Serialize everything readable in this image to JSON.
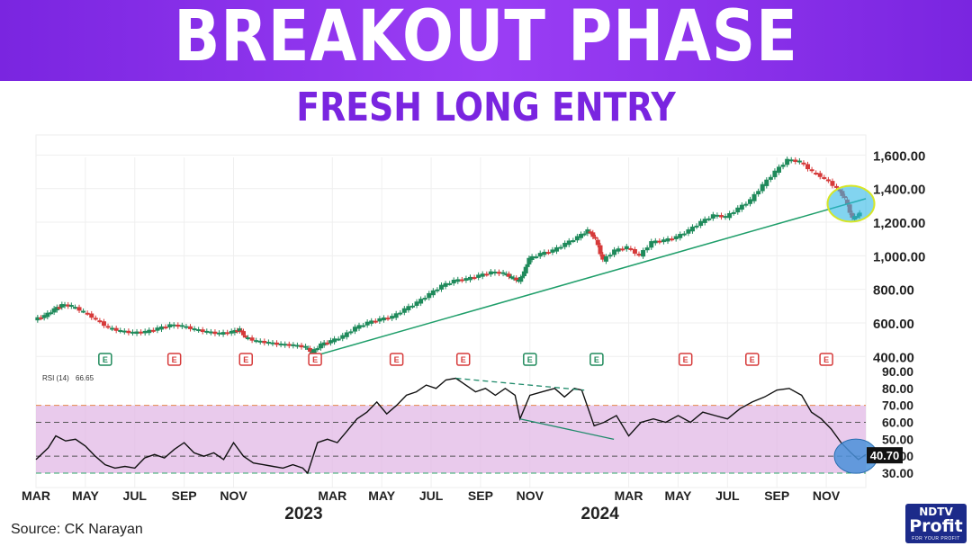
{
  "header": {
    "title": "BREAKOUT PHASE",
    "subtitle": "FRESH LONG ENTRY"
  },
  "source": "Source: CK Narayan",
  "logo": {
    "top": "NDTV",
    "middle": "Profit",
    "bottom": "FOR YOUR PROFIT"
  },
  "colors": {
    "banner": "#7a25e0",
    "subtitle": "#7a25e0",
    "candle_up": "#1f8a5b",
    "candle_down": "#d63a3a",
    "trendline": "#1f9e6a",
    "rsi_band_fill": "#e2b8e6",
    "rsi_line": "#111111",
    "highlight_ellipse": "#2fb7e6",
    "highlight_border": "#d6e626",
    "rsi_circle": "#4a90d9",
    "earnings_up": "#1f8a5b",
    "earnings_down": "#d63a3a"
  },
  "chart_data": [
    {
      "type": "candlestick",
      "title": "",
      "y_ticks": [
        "1,600.00",
        "1,400.00",
        "1,200.00",
        "1,000.00",
        "800.00",
        "600.00",
        "400.00"
      ],
      "y_tick_values": [
        1600,
        1400,
        1200,
        1000,
        800,
        600,
        400
      ],
      "ylim": [
        380,
        1720
      ],
      "x_tick_labels": [
        "MAR",
        "MAY",
        "JUL",
        "SEP",
        "NOV",
        "MAR",
        "MAY",
        "JUL",
        "SEP",
        "NOV",
        "MAR",
        "MAY",
        "JUL",
        "SEP",
        "NOV"
      ],
      "x_tick_months": [
        2,
        4,
        6,
        8,
        10,
        14,
        16,
        18,
        20,
        22,
        26,
        28,
        30,
        32,
        34
      ],
      "year_labels": [
        {
          "label": "2023",
          "month": 12
        },
        {
          "label": "2024",
          "month": 24
        }
      ],
      "xlim_months": [
        2,
        35.6
      ],
      "close_series": [
        {
          "m": 2.0,
          "v": 620
        },
        {
          "m": 2.4,
          "v": 640
        },
        {
          "m": 2.8,
          "v": 680
        },
        {
          "m": 3.1,
          "v": 705
        },
        {
          "m": 3.5,
          "v": 700
        },
        {
          "m": 4.0,
          "v": 665
        },
        {
          "m": 4.5,
          "v": 620
        },
        {
          "m": 5.0,
          "v": 570
        },
        {
          "m": 5.5,
          "v": 550
        },
        {
          "m": 6.0,
          "v": 540
        },
        {
          "m": 6.5,
          "v": 545
        },
        {
          "m": 7.0,
          "v": 565
        },
        {
          "m": 7.5,
          "v": 585
        },
        {
          "m": 8.0,
          "v": 580
        },
        {
          "m": 8.5,
          "v": 560
        },
        {
          "m": 9.0,
          "v": 545
        },
        {
          "m": 9.5,
          "v": 535
        },
        {
          "m": 10.0,
          "v": 545
        },
        {
          "m": 10.3,
          "v": 560
        },
        {
          "m": 10.5,
          "v": 515
        },
        {
          "m": 11.0,
          "v": 490
        },
        {
          "m": 11.5,
          "v": 480
        },
        {
          "m": 12.0,
          "v": 470
        },
        {
          "m": 12.5,
          "v": 465
        },
        {
          "m": 13.0,
          "v": 455
        },
        {
          "m": 13.2,
          "v": 420
        },
        {
          "m": 13.6,
          "v": 470
        },
        {
          "m": 14.0,
          "v": 490
        },
        {
          "m": 14.5,
          "v": 520
        },
        {
          "m": 15.0,
          "v": 570
        },
        {
          "m": 15.5,
          "v": 600
        },
        {
          "m": 16.0,
          "v": 620
        },
        {
          "m": 16.5,
          "v": 635
        },
        {
          "m": 17.0,
          "v": 680
        },
        {
          "m": 17.5,
          "v": 720
        },
        {
          "m": 18.0,
          "v": 770
        },
        {
          "m": 18.5,
          "v": 820
        },
        {
          "m": 19.0,
          "v": 850
        },
        {
          "m": 19.5,
          "v": 860
        },
        {
          "m": 20.0,
          "v": 880
        },
        {
          "m": 20.5,
          "v": 900
        },
        {
          "m": 21.0,
          "v": 895
        },
        {
          "m": 21.3,
          "v": 870
        },
        {
          "m": 21.6,
          "v": 850
        },
        {
          "m": 21.8,
          "v": 900
        },
        {
          "m": 22.0,
          "v": 980
        },
        {
          "m": 22.5,
          "v": 1010
        },
        {
          "m": 23.0,
          "v": 1030
        },
        {
          "m": 23.5,
          "v": 1070
        },
        {
          "m": 24.0,
          "v": 1110
        },
        {
          "m": 24.4,
          "v": 1150
        },
        {
          "m": 24.7,
          "v": 1100
        },
        {
          "m": 25.0,
          "v": 970
        },
        {
          "m": 25.5,
          "v": 1030
        },
        {
          "m": 26.0,
          "v": 1050
        },
        {
          "m": 26.5,
          "v": 1000
        },
        {
          "m": 27.0,
          "v": 1080
        },
        {
          "m": 27.5,
          "v": 1090
        },
        {
          "m": 28.0,
          "v": 1110
        },
        {
          "m": 28.5,
          "v": 1150
        },
        {
          "m": 29.0,
          "v": 1200
        },
        {
          "m": 29.5,
          "v": 1240
        },
        {
          "m": 30.0,
          "v": 1230
        },
        {
          "m": 30.5,
          "v": 1280
        },
        {
          "m": 31.0,
          "v": 1330
        },
        {
          "m": 31.5,
          "v": 1420
        },
        {
          "m": 32.0,
          "v": 1500
        },
        {
          "m": 32.5,
          "v": 1570
        },
        {
          "m": 33.0,
          "v": 1560
        },
        {
          "m": 33.5,
          "v": 1500
        },
        {
          "m": 34.0,
          "v": 1460
        },
        {
          "m": 34.5,
          "v": 1400
        },
        {
          "m": 34.8,
          "v": 1340
        },
        {
          "m": 35.1,
          "v": 1220
        },
        {
          "m": 35.4,
          "v": 1250
        }
      ],
      "trendline": {
        "from": {
          "m": 13.2,
          "v": 400
        },
        "to": {
          "m": 35.6,
          "v": 1340
        }
      },
      "earnings_markers": [
        {
          "m": 4.8,
          "label": "E",
          "direction": "up"
        },
        {
          "m": 7.6,
          "label": "E",
          "direction": "down"
        },
        {
          "m": 10.5,
          "label": "E",
          "direction": "down"
        },
        {
          "m": 13.3,
          "label": "E",
          "direction": "down"
        },
        {
          "m": 16.6,
          "label": "E",
          "direction": "down"
        },
        {
          "m": 19.3,
          "label": "E",
          "direction": "down"
        },
        {
          "m": 22.0,
          "label": "E",
          "direction": "up"
        },
        {
          "m": 24.7,
          "label": "E",
          "direction": "up"
        },
        {
          "m": 28.3,
          "label": "E",
          "direction": "down"
        },
        {
          "m": 31.0,
          "label": "E",
          "direction": "down"
        },
        {
          "m": 34.0,
          "label": "E",
          "direction": "down"
        }
      ],
      "highlight": {
        "m": 35.0,
        "v": 1310,
        "shape": "ellipse"
      }
    },
    {
      "type": "line",
      "name": "RSI (14)",
      "legend_label": "RSI (14)",
      "legend_value": "66.65",
      "last_value_label": "40.70",
      "y_ticks": [
        "90.00",
        "80.00",
        "70.00",
        "60.00",
        "50.00",
        "40.00",
        "30.00"
      ],
      "y_tick_values": [
        90,
        80,
        70,
        60,
        50,
        40,
        30
      ],
      "ylim": [
        30,
        90
      ],
      "band": [
        30,
        70
      ],
      "reference_lines": [
        70,
        60,
        40,
        30
      ],
      "values": [
        {
          "m": 2.0,
          "v": 38
        },
        {
          "m": 2.5,
          "v": 45
        },
        {
          "m": 2.8,
          "v": 52
        },
        {
          "m": 3.2,
          "v": 49
        },
        {
          "m": 3.6,
          "v": 50
        },
        {
          "m": 4.0,
          "v": 46
        },
        {
          "m": 4.4,
          "v": 40
        },
        {
          "m": 4.8,
          "v": 35
        },
        {
          "m": 5.2,
          "v": 33
        },
        {
          "m": 5.6,
          "v": 34
        },
        {
          "m": 6.0,
          "v": 33
        },
        {
          "m": 6.4,
          "v": 39
        },
        {
          "m": 6.8,
          "v": 41
        },
        {
          "m": 7.2,
          "v": 39
        },
        {
          "m": 7.6,
          "v": 44
        },
        {
          "m": 8.0,
          "v": 48
        },
        {
          "m": 8.4,
          "v": 42
        },
        {
          "m": 8.8,
          "v": 40
        },
        {
          "m": 9.2,
          "v": 42
        },
        {
          "m": 9.6,
          "v": 38
        },
        {
          "m": 10.0,
          "v": 48
        },
        {
          "m": 10.4,
          "v": 40
        },
        {
          "m": 10.8,
          "v": 36
        },
        {
          "m": 11.2,
          "v": 35
        },
        {
          "m": 11.6,
          "v": 34
        },
        {
          "m": 12.0,
          "v": 33
        },
        {
          "m": 12.4,
          "v": 35
        },
        {
          "m": 12.8,
          "v": 33
        },
        {
          "m": 13.0,
          "v": 30
        },
        {
          "m": 13.4,
          "v": 48
        },
        {
          "m": 13.8,
          "v": 50
        },
        {
          "m": 14.2,
          "v": 48
        },
        {
          "m": 14.6,
          "v": 55
        },
        {
          "m": 15.0,
          "v": 62
        },
        {
          "m": 15.4,
          "v": 66
        },
        {
          "m": 15.8,
          "v": 72
        },
        {
          "m": 16.2,
          "v": 65
        },
        {
          "m": 16.6,
          "v": 70
        },
        {
          "m": 17.0,
          "v": 76
        },
        {
          "m": 17.4,
          "v": 78
        },
        {
          "m": 17.8,
          "v": 82
        },
        {
          "m": 18.2,
          "v": 80
        },
        {
          "m": 18.6,
          "v": 85
        },
        {
          "m": 19.0,
          "v": 86
        },
        {
          "m": 19.4,
          "v": 82
        },
        {
          "m": 19.8,
          "v": 78
        },
        {
          "m": 20.2,
          "v": 80
        },
        {
          "m": 20.6,
          "v": 76
        },
        {
          "m": 21.0,
          "v": 80
        },
        {
          "m": 21.4,
          "v": 76
        },
        {
          "m": 21.6,
          "v": 62
        },
        {
          "m": 22.0,
          "v": 76
        },
        {
          "m": 22.5,
          "v": 78
        },
        {
          "m": 23.0,
          "v": 80
        },
        {
          "m": 23.4,
          "v": 75
        },
        {
          "m": 23.8,
          "v": 80
        },
        {
          "m": 24.1,
          "v": 79
        },
        {
          "m": 24.6,
          "v": 58
        },
        {
          "m": 25.0,
          "v": 60
        },
        {
          "m": 25.5,
          "v": 64
        },
        {
          "m": 26.0,
          "v": 52
        },
        {
          "m": 26.5,
          "v": 60
        },
        {
          "m": 27.0,
          "v": 62
        },
        {
          "m": 27.5,
          "v": 60
        },
        {
          "m": 28.0,
          "v": 64
        },
        {
          "m": 28.5,
          "v": 60
        },
        {
          "m": 29.0,
          "v": 66
        },
        {
          "m": 29.5,
          "v": 64
        },
        {
          "m": 30.0,
          "v": 62
        },
        {
          "m": 30.5,
          "v": 68
        },
        {
          "m": 31.0,
          "v": 72
        },
        {
          "m": 31.5,
          "v": 75
        },
        {
          "m": 32.0,
          "v": 79
        },
        {
          "m": 32.5,
          "v": 80
        },
        {
          "m": 33.0,
          "v": 76
        },
        {
          "m": 33.4,
          "v": 66
        },
        {
          "m": 33.8,
          "v": 62
        },
        {
          "m": 34.2,
          "v": 56
        },
        {
          "m": 34.6,
          "v": 48
        },
        {
          "m": 35.0,
          "v": 42
        },
        {
          "m": 35.3,
          "v": 38
        },
        {
          "m": 35.6,
          "v": 41
        }
      ],
      "divergence_lines": [
        {
          "from": {
            "m": 19.0,
            "v": 86
          },
          "to": {
            "m": 24.2,
            "v": 79
          },
          "style": "dashed"
        },
        {
          "from": {
            "m": 21.6,
            "v": 62
          },
          "to": {
            "m": 25.4,
            "v": 50
          },
          "style": "solid"
        }
      ],
      "highlight": {
        "m": 35.2,
        "v": 40,
        "shape": "circle"
      }
    }
  ]
}
